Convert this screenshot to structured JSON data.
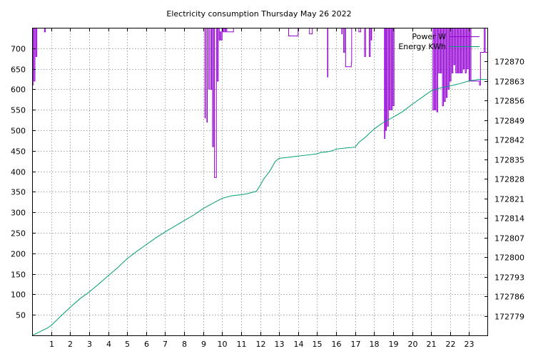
{
  "colors": {
    "power": "#9400d3",
    "energy": "#009e73",
    "grid": "#a0a0a0",
    "axis": "#000000",
    "background": "#ffffff"
  },
  "chart_data": {
    "type": "line",
    "title": "Electricity consumption Thursday May 26 2022",
    "xlabel": "",
    "ylabel": "",
    "y2label": "",
    "grid": true,
    "legend_position": "top-right",
    "x_range": [
      0,
      24
    ],
    "xlim": [
      0,
      24
    ],
    "ylim": [
      0,
      750
    ],
    "y2lim": [
      172772,
      172882
    ],
    "x_ticks": [
      "1",
      "2",
      "3",
      "4",
      "5",
      "6",
      "7",
      "8",
      "9",
      "10",
      "11",
      "12",
      "13",
      "14",
      "15",
      "16",
      "17",
      "18",
      "19",
      "20",
      "21",
      "22",
      "23"
    ],
    "y_ticks": [
      "50",
      "100",
      "150",
      "200",
      "250",
      "300",
      "350",
      "400",
      "450",
      "500",
      "550",
      "600",
      "650",
      "700"
    ],
    "y2_ticks": [
      "172779",
      "172786",
      "172793",
      "172800",
      "172807",
      "172814",
      "172821",
      "172828",
      "172835",
      "172842",
      "172849",
      "172856",
      "172863",
      "172870"
    ],
    "series": [
      {
        "name": "Power W",
        "axis": "y",
        "color": "#9400d3",
        "render": "steps",
        "x": [
          0.0,
          0.05,
          0.1,
          0.15,
          0.2,
          0.25,
          0.3,
          0.35,
          0.45,
          0.55,
          0.6,
          0.65,
          0.7,
          0.9,
          1.0,
          2.0,
          3.0,
          4.0,
          5.0,
          6.0,
          7.0,
          8.0,
          9.0,
          9.1,
          9.12,
          9.2,
          9.22,
          9.3,
          9.32,
          9.4,
          9.45,
          9.5,
          9.55,
          9.6,
          9.7,
          9.75,
          9.8,
          9.85,
          9.9,
          9.95,
          10.0,
          10.05,
          10.1,
          10.15,
          10.2,
          10.25,
          10.3,
          10.35,
          10.4,
          10.45,
          10.5,
          10.55,
          10.6,
          11.0,
          11.2,
          11.25,
          12.0,
          12.5,
          13.0,
          13.5,
          14.0,
          14.55,
          14.6,
          14.7,
          14.75,
          15.0,
          15.55,
          15.57,
          15.6,
          15.62,
          16.0,
          16.3,
          16.32,
          16.4,
          16.45,
          16.5,
          16.55,
          16.8,
          16.82,
          17.0,
          17.1,
          17.2,
          17.3,
          17.5,
          17.55,
          17.75,
          17.8,
          17.85,
          17.87,
          18.0,
          18.3,
          18.55,
          18.57,
          18.6,
          18.65,
          18.7,
          18.75,
          18.8,
          18.85,
          18.9,
          18.95,
          19.0,
          19.05,
          19.1,
          19.15,
          19.2,
          19.25,
          19.3,
          19.35,
          20.0,
          21.0,
          21.1,
          21.15,
          21.2,
          21.25,
          21.3,
          21.35,
          21.4,
          21.45,
          21.5,
          21.55,
          21.6,
          21.65,
          21.7,
          21.75,
          21.8,
          21.85,
          21.9,
          21.95,
          22.0,
          22.05,
          22.1,
          22.15,
          22.2,
          22.25,
          22.3,
          22.35,
          22.4,
          22.45,
          22.5,
          22.55,
          22.6,
          22.65,
          22.7,
          22.75,
          22.8,
          22.85,
          22.9,
          22.95,
          23.0,
          23.05,
          23.1,
          23.15,
          23.5,
          23.55,
          23.6,
          23.8,
          23.85,
          23.9
        ],
        "y": [
          610,
          750,
          620,
          750,
          680,
          750,
          750,
          750,
          750,
          750,
          750,
          740,
          750,
          750,
          750,
          750,
          750,
          750,
          750,
          750,
          750,
          750,
          750,
          530,
          750,
          520,
          750,
          600,
          750,
          600,
          750,
          460,
          750,
          385,
          750,
          620,
          750,
          720,
          740,
          720,
          750,
          740,
          750,
          740,
          750,
          740,
          740,
          740,
          740,
          740,
          740,
          740,
          750,
          750,
          750,
          750,
          750,
          750,
          750,
          730,
          750,
          750,
          735,
          735,
          750,
          750,
          630,
          750,
          750,
          750,
          750,
          735,
          750,
          690,
          750,
          655,
          655,
          665,
          750,
          750,
          750,
          740,
          750,
          680,
          750,
          680,
          750,
          720,
          750,
          750,
          750,
          480,
          750,
          500,
          750,
          510,
          750,
          550,
          750,
          550,
          750,
          560,
          750,
          750,
          750,
          750,
          750,
          750,
          750,
          750,
          750,
          550,
          750,
          550,
          750,
          545,
          750,
          640,
          750,
          640,
          750,
          560,
          750,
          570,
          750,
          580,
          750,
          600,
          750,
          620,
          750,
          640,
          750,
          660,
          750,
          640,
          750,
          640,
          750,
          640,
          750,
          640,
          750,
          650,
          750,
          640,
          750,
          650,
          750,
          620,
          750,
          620,
          620,
          620,
          610,
          690,
          750,
          690,
          690
        ],
        "x_end": 24.0
      },
      {
        "name": "Energy KWh",
        "axis": "y2",
        "color": "#009e73",
        "render": "line",
        "x": [
          0.0,
          0.2,
          0.5,
          0.8,
          1.0,
          1.5,
          2.0,
          2.5,
          3.0,
          3.5,
          4.0,
          4.5,
          5.0,
          5.5,
          6.0,
          6.5,
          7.0,
          7.5,
          8.0,
          8.5,
          9.0,
          9.5,
          10.0,
          10.5,
          11.0,
          11.3,
          11.5,
          11.8,
          12.0,
          12.2,
          12.5,
          12.8,
          13.0,
          13.5,
          14.0,
          14.5,
          15.0,
          15.2,
          15.5,
          15.8,
          16.0,
          16.5,
          17.0,
          17.2,
          17.5,
          18.0,
          18.5,
          19.0,
          19.5,
          20.0,
          20.5,
          21.0,
          21.5,
          22.0,
          22.5,
          23.0,
          23.5,
          24.0
        ],
        "y": [
          172772.0,
          172772.6,
          172773.6,
          172774.6,
          172775.5,
          172778.8,
          172782.0,
          172785.0,
          172787.5,
          172790.3,
          172793.3,
          172796.2,
          172799.4,
          172802.0,
          172804.4,
          172806.8,
          172809.0,
          172811.0,
          172813.0,
          172815.0,
          172817.3,
          172819.2,
          172821.0,
          172821.9,
          172822.3,
          172822.6,
          172823.0,
          172823.5,
          172825.6,
          172828.0,
          172830.6,
          172834.2,
          172835.3,
          172835.7,
          172836.1,
          172836.5,
          172836.9,
          172837.4,
          172837.6,
          172838.0,
          172838.6,
          172839.0,
          172839.3,
          172841.0,
          172842.6,
          172845.8,
          172848.2,
          172850.0,
          172852.0,
          172854.6,
          172857.0,
          172859.4,
          172860.5,
          172861.2,
          172862.0,
          172863.0,
          172863.5,
          172863.5
        ]
      }
    ]
  }
}
